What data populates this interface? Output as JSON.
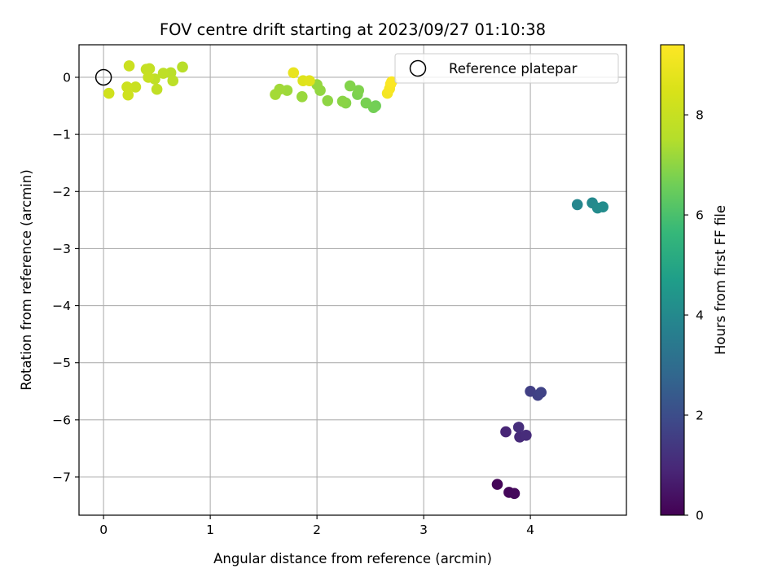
{
  "chart_data": {
    "type": "scatter",
    "title": "FOV centre drift starting at 2023/09/27 01:10:38",
    "xlabel": "Angular distance from reference (arcmin)",
    "ylabel": "Rotation from reference (arcmin)",
    "xlim": [
      -0.23,
      4.9
    ],
    "ylim": [
      -7.67,
      0.57
    ],
    "x_ticks": [
      0,
      1,
      2,
      3,
      4
    ],
    "y_ticks": [
      0,
      -1,
      -2,
      -3,
      -4,
      -5,
      -6,
      -7
    ],
    "x_tick_labels": [
      "0",
      "1",
      "2",
      "3",
      "4"
    ],
    "y_tick_labels": [
      "0",
      "−1",
      "−2",
      "−3",
      "−4",
      "−5",
      "−6",
      "−7"
    ],
    "grid": true,
    "legend": {
      "position": "top-right",
      "entries": [
        "Reference platepar"
      ]
    },
    "colorbar": {
      "label": "Hours from first FF file",
      "colormap": "viridis",
      "range": [
        0,
        9.4
      ],
      "ticks": [
        0,
        2,
        4,
        6,
        8
      ],
      "tick_labels": [
        "0",
        "2",
        "4",
        "6",
        "8"
      ]
    },
    "reference_point": {
      "x": 0,
      "y": 0
    },
    "points": [
      {
        "x": 3.69,
        "y": -7.13,
        "hours": 0.1
      },
      {
        "x": 3.8,
        "y": -7.27,
        "hours": 0.15
      },
      {
        "x": 3.85,
        "y": -7.29,
        "hours": 0.2
      },
      {
        "x": 3.77,
        "y": -6.21,
        "hours": 0.9
      },
      {
        "x": 3.9,
        "y": -6.3,
        "hours": 1.0
      },
      {
        "x": 3.96,
        "y": -6.27,
        "hours": 1.05
      },
      {
        "x": 3.89,
        "y": -6.13,
        "hours": 1.1
      },
      {
        "x": 4.0,
        "y": -5.5,
        "hours": 1.6
      },
      {
        "x": 4.07,
        "y": -5.57,
        "hours": 1.65
      },
      {
        "x": 4.1,
        "y": -5.52,
        "hours": 1.7
      },
      {
        "x": 4.44,
        "y": -2.23,
        "hours": 3.9
      },
      {
        "x": 4.58,
        "y": -2.2,
        "hours": 4.0
      },
      {
        "x": 4.63,
        "y": -2.29,
        "hours": 4.05
      },
      {
        "x": 4.68,
        "y": -2.27,
        "hours": 4.1
      },
      {
        "x": 2.55,
        "y": -0.5,
        "hours": 6.6
      },
      {
        "x": 2.53,
        "y": -0.53,
        "hours": 6.65
      },
      {
        "x": 2.46,
        "y": -0.45,
        "hours": 6.7
      },
      {
        "x": 2.38,
        "y": -0.3,
        "hours": 6.75
      },
      {
        "x": 2.39,
        "y": -0.23,
        "hours": 6.8
      },
      {
        "x": 2.31,
        "y": -0.15,
        "hours": 6.85
      },
      {
        "x": 2.27,
        "y": -0.45,
        "hours": 6.9
      },
      {
        "x": 2.24,
        "y": -0.42,
        "hours": 6.95
      },
      {
        "x": 2.1,
        "y": -0.41,
        "hours": 7.0
      },
      {
        "x": 2.03,
        "y": -0.23,
        "hours": 7.05
      },
      {
        "x": 2.0,
        "y": -0.13,
        "hours": 7.1
      },
      {
        "x": 1.86,
        "y": -0.34,
        "hours": 7.15
      },
      {
        "x": 1.72,
        "y": -0.23,
        "hours": 7.2
      },
      {
        "x": 1.65,
        "y": -0.21,
        "hours": 7.25
      },
      {
        "x": 1.61,
        "y": -0.3,
        "hours": 7.3
      },
      {
        "x": 0.74,
        "y": 0.18,
        "hours": 7.6
      },
      {
        "x": 0.63,
        "y": 0.08,
        "hours": 7.65
      },
      {
        "x": 0.65,
        "y": -0.06,
        "hours": 7.7
      },
      {
        "x": 0.56,
        "y": 0.07,
        "hours": 7.75
      },
      {
        "x": 0.48,
        "y": -0.03,
        "hours": 7.8
      },
      {
        "x": 0.5,
        "y": -0.21,
        "hours": 7.85
      },
      {
        "x": 0.43,
        "y": 0.15,
        "hours": 7.9
      },
      {
        "x": 0.4,
        "y": 0.14,
        "hours": 7.95
      },
      {
        "x": 0.42,
        "y": 0.0,
        "hours": 8.0
      },
      {
        "x": 0.3,
        "y": -0.17,
        "hours": 8.05
      },
      {
        "x": 0.24,
        "y": 0.2,
        "hours": 8.1
      },
      {
        "x": 0.22,
        "y": -0.17,
        "hours": 8.15
      },
      {
        "x": 0.23,
        "y": -0.31,
        "hours": 8.2
      },
      {
        "x": 0.05,
        "y": -0.28,
        "hours": 8.25
      },
      {
        "x": 1.87,
        "y": -0.06,
        "hours": 8.6
      },
      {
        "x": 1.93,
        "y": -0.06,
        "hours": 8.7
      },
      {
        "x": 1.78,
        "y": 0.08,
        "hours": 8.9
      },
      {
        "x": 2.66,
        "y": -0.28,
        "hours": 9.15
      },
      {
        "x": 2.68,
        "y": -0.2,
        "hours": 9.25
      },
      {
        "x": 2.69,
        "y": -0.12,
        "hours": 9.3
      },
      {
        "x": 2.7,
        "y": -0.08,
        "hours": 9.35
      }
    ]
  }
}
